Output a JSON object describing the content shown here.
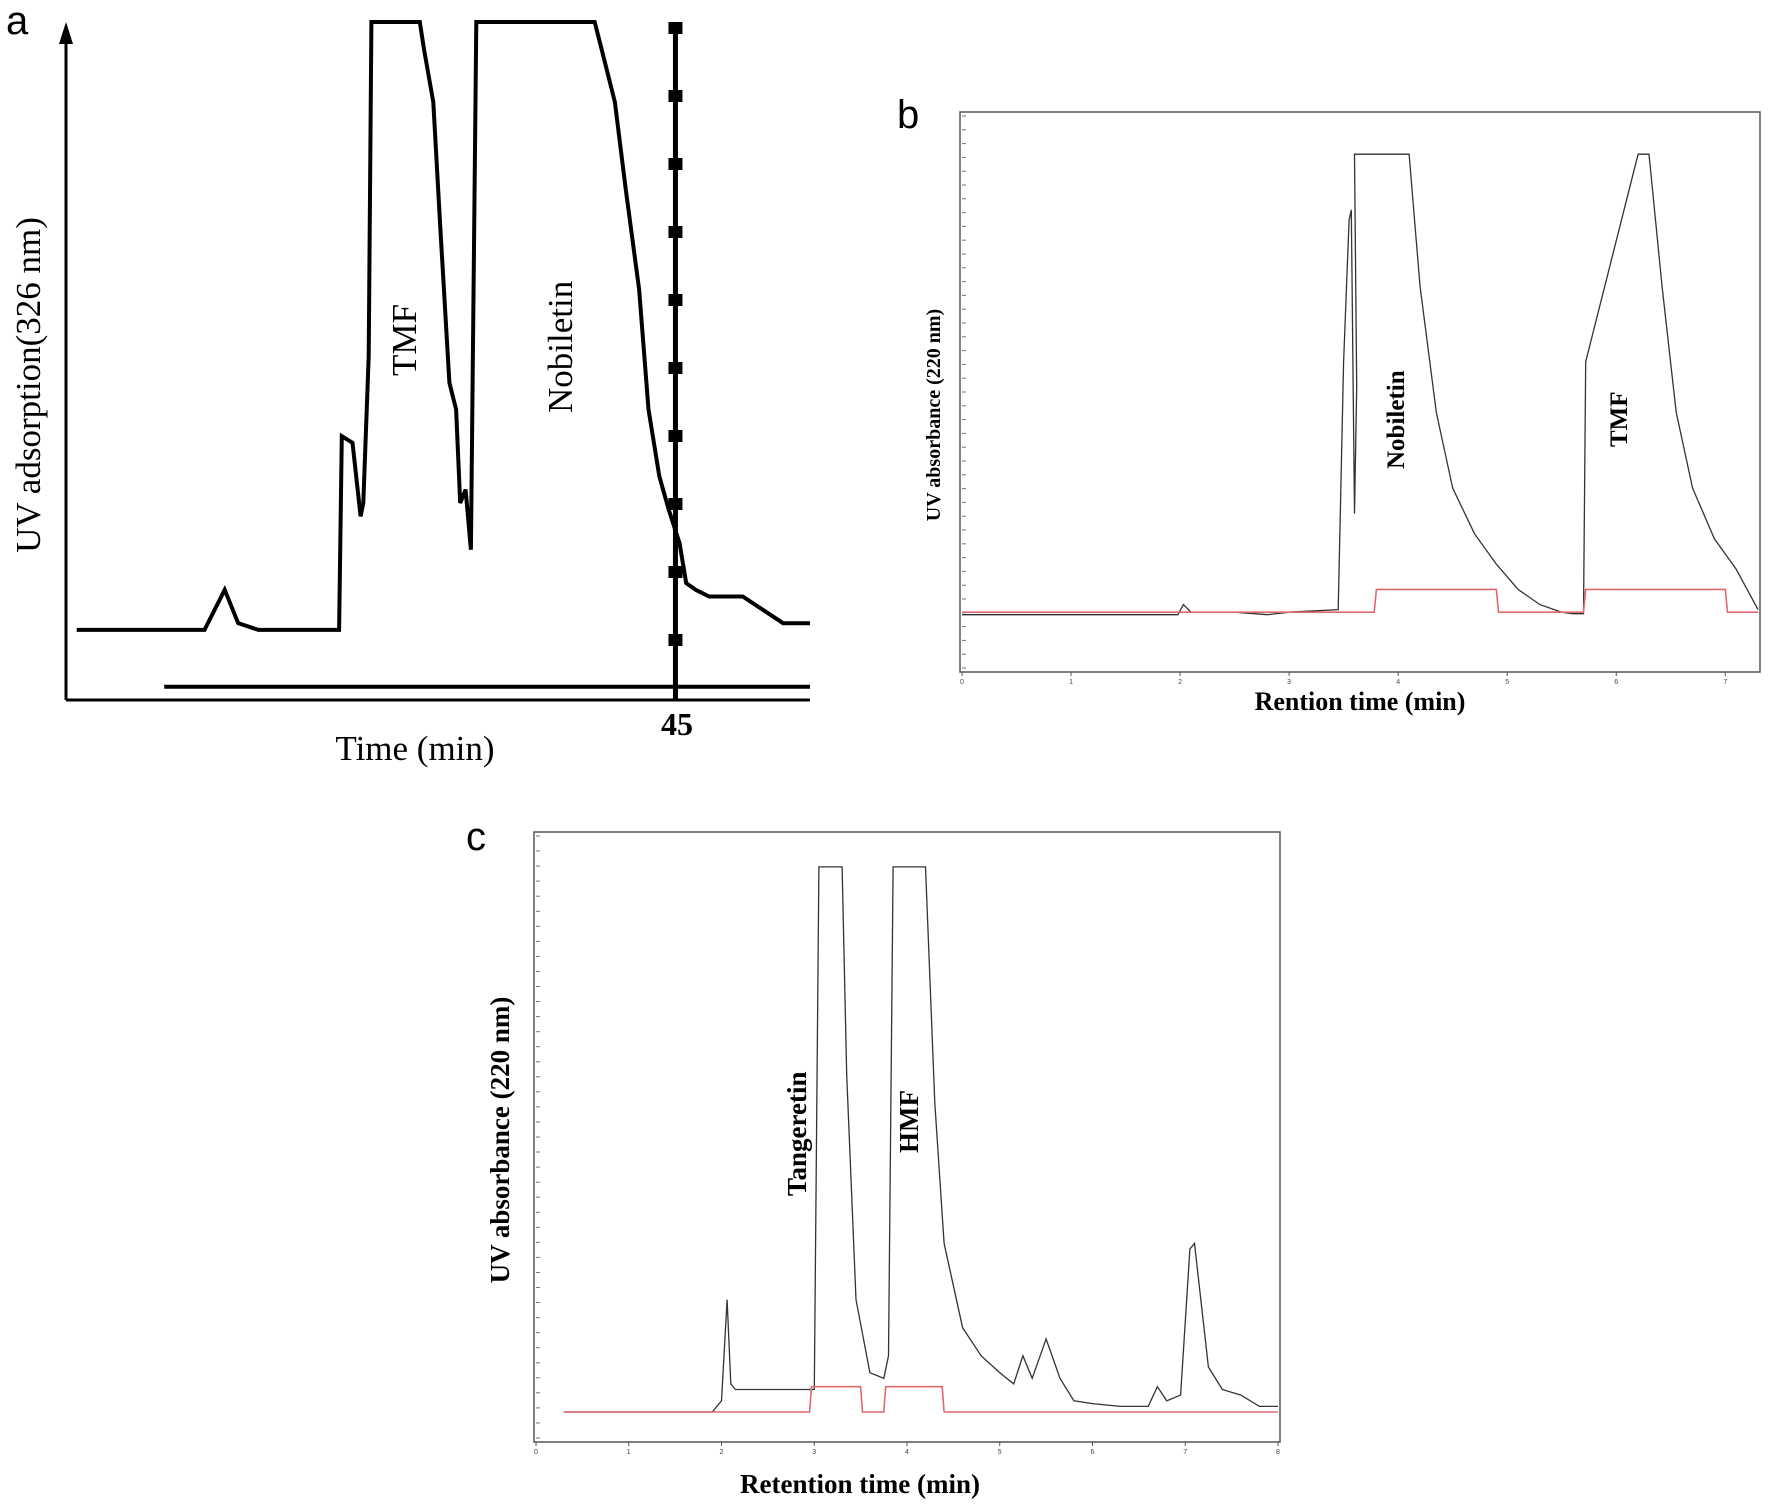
{
  "figure": {
    "panels": [
      {
        "letter": "a"
      },
      {
        "letter": "b"
      },
      {
        "letter": "c"
      }
    ]
  },
  "chart_data": [
    {
      "panel": "a",
      "type": "line",
      "xlabel": "Time (min)",
      "ylabel": "UV adsorption(326 nm)",
      "xlim": [
        0,
        55
      ],
      "ylim": [
        0,
        100
      ],
      "marked_x": [
        {
          "value": 45,
          "label": "45"
        }
      ],
      "annotations": [
        {
          "text": "TMF",
          "x": 26,
          "y": 58
        },
        {
          "text": "Nobiletin",
          "x": 37,
          "y": 58
        }
      ],
      "series": [
        {
          "color": "#000000",
          "x": [
            0.5,
            3,
            10,
            11.5,
            12.5,
            14,
            20,
            20.2,
            21,
            21.6,
            21.8,
            22.2,
            22.4,
            26,
            26.3,
            27,
            27.5,
            28.2,
            28.7,
            29,
            29.4,
            29.8,
            30.2,
            30.5,
            31,
            39,
            39.5,
            40.5,
            41.3,
            42.3,
            43,
            43.8,
            44.5,
            45.3,
            45.8,
            46.5,
            47.5,
            48.5,
            50,
            51.5,
            53,
            55
          ],
          "y": [
            9,
            9,
            9,
            15,
            10,
            9,
            9,
            38,
            37,
            26,
            28,
            50,
            100,
            100,
            96,
            88,
            70,
            46,
            42,
            28,
            30,
            21,
            100,
            100,
            100,
            100,
            96,
            88,
            75,
            60,
            42,
            32,
            27,
            22,
            16,
            15,
            14,
            14,
            14,
            12,
            10,
            10
          ]
        },
        {
          "color": "#000000",
          "x": [
            7,
            55
          ],
          "y": [
            0.5,
            0.5
          ]
        }
      ]
    },
    {
      "panel": "b",
      "type": "line",
      "xlabel": "Rention time (min)",
      "ylabel": "UV absorbance (220 nm)",
      "xlim": [
        0,
        7.3
      ],
      "ylim": [
        0,
        100
      ],
      "x_ticks": [
        0,
        1,
        2,
        3,
        4,
        5,
        6,
        7
      ],
      "annotations": [
        {
          "text": "Nobiletin",
          "x": 4.0,
          "y": 52
        },
        {
          "text": "TMF",
          "x": 6.0,
          "y": 52
        }
      ],
      "series": [
        {
          "color": "#333333",
          "x": [
            0,
            1.8,
            1.98,
            2.03,
            2.1,
            2.5,
            2.8,
            3.0,
            3.45,
            3.5,
            3.55,
            3.57,
            3.6,
            3.62,
            3.6,
            3.7,
            4.1,
            4.2,
            4.35,
            4.5,
            4.7,
            4.9,
            5.1,
            5.3,
            5.5,
            5.6,
            5.7,
            5.72,
            6.2,
            6.3,
            6.42,
            6.55,
            6.7,
            6.9,
            7.1,
            7.3
          ],
          "y": [
            5,
            5,
            5,
            7,
            5.5,
            5.5,
            5,
            5.5,
            6,
            55,
            83,
            85,
            25,
            50,
            96,
            96,
            96,
            70,
            45,
            30,
            21,
            15,
            10,
            7,
            5.5,
            5.2,
            5.2,
            55,
            96,
            96,
            70,
            45,
            30,
            20,
            14,
            6
          ]
        },
        {
          "color": "#e0696e",
          "x": [
            0,
            3.78,
            3.8,
            4.9,
            4.92,
            5.7,
            5.72,
            7.0,
            7.02,
            7.3
          ],
          "y": [
            5.5,
            5.5,
            10,
            10,
            5.5,
            5.5,
            10,
            10,
            5.5,
            5.5
          ]
        }
      ]
    },
    {
      "panel": "c",
      "type": "line",
      "xlabel": "Retention time (min)",
      "ylabel": "UV absorbance (220 nm)",
      "xlim": [
        0,
        8
      ],
      "ylim": [
        0,
        100
      ],
      "x_ticks": [
        0,
        1,
        2,
        3,
        4,
        5,
        6,
        7,
        8
      ],
      "annotations": [
        {
          "text": "Tangeretin",
          "x": 2.9,
          "y": 58
        },
        {
          "text": "HMF",
          "x": 4.2,
          "y": 58
        }
      ],
      "series": [
        {
          "color": "#333333",
          "x": [
            0.3,
            1.9,
            2.0,
            2.06,
            2.1,
            2.15,
            2.3,
            2.6,
            2.9,
            3.0,
            3.05,
            3.1,
            3.3,
            3.35,
            3.45,
            3.6,
            3.75,
            3.8,
            3.85,
            4.2,
            4.3,
            4.4,
            4.6,
            4.8,
            5.0,
            5.15,
            5.25,
            5.35,
            5.5,
            5.65,
            5.8,
            6.0,
            6.3,
            6.6,
            6.7,
            6.8,
            6.95,
            7.05,
            7.1,
            7.25,
            7.4,
            7.6,
            7.8,
            8.0
          ],
          "y": [
            0,
            0,
            2,
            20,
            5,
            4,
            4,
            4,
            4,
            4,
            97,
            97,
            97,
            60,
            20,
            7,
            6,
            10,
            97,
            97,
            55,
            30,
            15,
            10,
            7,
            5,
            10,
            6,
            13,
            6,
            2,
            1.5,
            1,
            1,
            4.5,
            2,
            3,
            29,
            30,
            8,
            4,
            3,
            1,
            1
          ]
        },
        {
          "color": "#e0696e",
          "x": [
            0.3,
            2.95,
            2.97,
            3.5,
            3.52,
            3.75,
            3.77,
            4.38,
            4.4,
            8.0
          ],
          "y": [
            0,
            0,
            4.5,
            4.5,
            0,
            0,
            4.5,
            4.5,
            0,
            0
          ]
        }
      ]
    }
  ]
}
